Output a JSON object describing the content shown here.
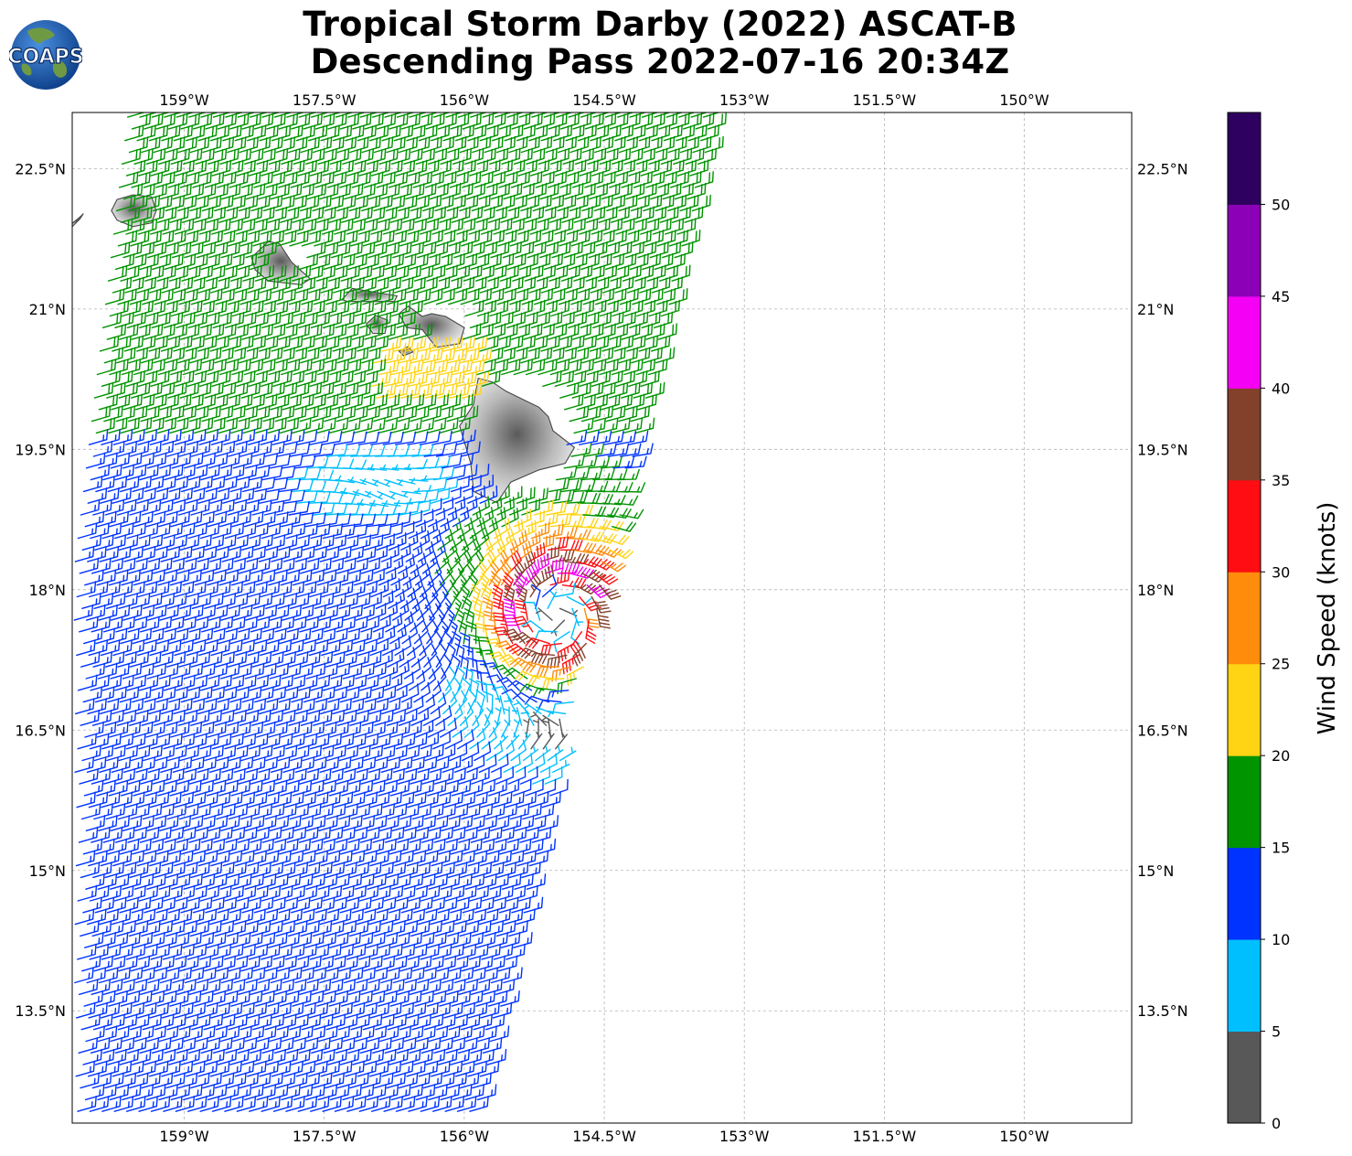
{
  "title": {
    "line1": "Tropical Storm Darby (2022) ASCAT-B",
    "line2": "Descending Pass 2022-07-16 20:34Z"
  },
  "logo": {
    "text": "COAPS",
    "ocean_color": "#1f5fae",
    "land_color": "#5f8d3a"
  },
  "map": {
    "lon_range": [
      -160.2,
      -148.85
    ],
    "lat_range": [
      12.3,
      23.1
    ],
    "lon_ticks": [
      {
        "value": -159.0,
        "label": "159°W"
      },
      {
        "value": -157.5,
        "label": "157.5°W"
      },
      {
        "value": -156.0,
        "label": "156°W"
      },
      {
        "value": -154.5,
        "label": "154.5°W"
      },
      {
        "value": -153.0,
        "label": "153°W"
      },
      {
        "value": -151.5,
        "label": "151.5°W"
      },
      {
        "value": -150.0,
        "label": "150°W"
      }
    ],
    "lat_ticks": [
      {
        "value": 22.5,
        "label": "22.5°N"
      },
      {
        "value": 21.0,
        "label": "21°N"
      },
      {
        "value": 19.5,
        "label": "19.5°N"
      },
      {
        "value": 18.0,
        "label": "18°N"
      },
      {
        "value": 16.5,
        "label": "16.5°N"
      },
      {
        "value": 15.0,
        "label": "15°N"
      },
      {
        "value": 13.5,
        "label": "13.5°N"
      }
    ],
    "grid": true,
    "islands": [
      "Kauai",
      "Niihau",
      "Oahu",
      "Molokai",
      "Lanai",
      "Maui",
      "Kahoolawe",
      "Hawaii"
    ],
    "storm_center": {
      "lon": -155.0,
      "lat": 17.75
    }
  },
  "colorbar": {
    "label": "Wind Speed (knots)",
    "ticks": [
      "0",
      "5",
      "10",
      "15",
      "20",
      "25",
      "30",
      "35",
      "40",
      "45",
      "50"
    ],
    "bins": [
      {
        "min": 0,
        "max": 5,
        "color": "#585858"
      },
      {
        "min": 5,
        "max": 10,
        "color": "#00bfff"
      },
      {
        "min": 10,
        "max": 15,
        "color": "#0033ff"
      },
      {
        "min": 15,
        "max": 20,
        "color": "#009400"
      },
      {
        "min": 20,
        "max": 25,
        "color": "#ffd414"
      },
      {
        "min": 25,
        "max": 30,
        "color": "#ff8c0a"
      },
      {
        "min": 30,
        "max": 35,
        "color": "#ff0d12"
      },
      {
        "min": 35,
        "max": 40,
        "color": "#83402a"
      },
      {
        "min": 40,
        "max": 45,
        "color": "#f400f4"
      },
      {
        "min": 45,
        "max": 50,
        "color": "#8c00b8"
      },
      {
        "min": 50,
        "max": 55,
        "color": "#2e0060"
      }
    ]
  }
}
